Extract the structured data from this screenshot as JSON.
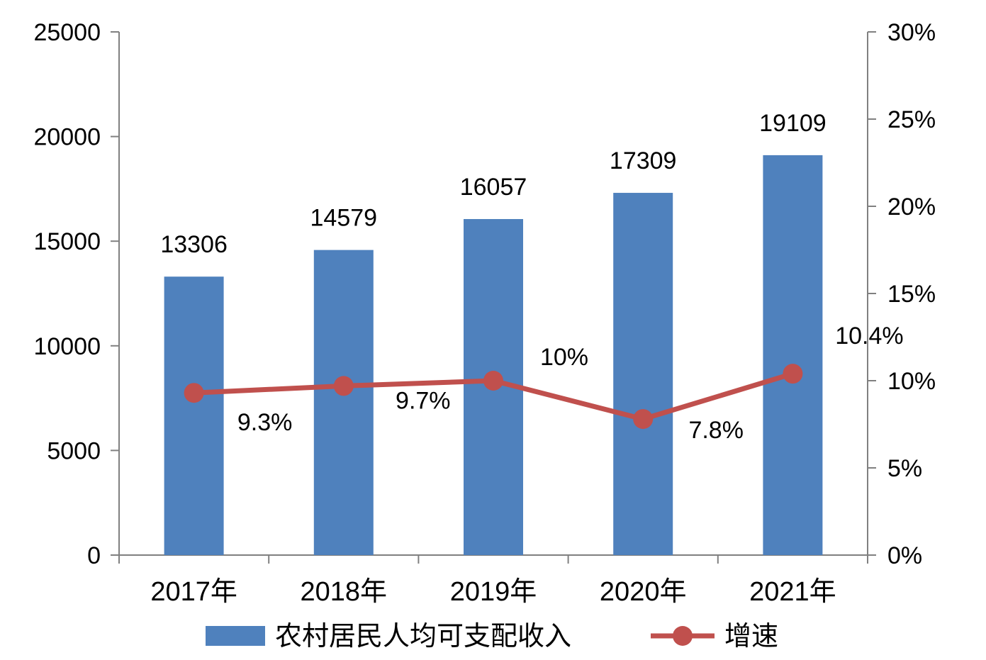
{
  "chart_data": {
    "type": "bar",
    "categories": [
      "2017年",
      "2018年",
      "2019年",
      "2020年",
      "2021年"
    ],
    "series": [
      {
        "name": "农村居民人均可支配收入",
        "type": "bar",
        "axis": "left",
        "color": "#4F81BD",
        "values": [
          13306,
          14579,
          16057,
          17309,
          19109
        ],
        "labels": [
          "13306",
          "14579",
          "16057",
          "17309",
          "19109"
        ]
      },
      {
        "name": "增速",
        "type": "line",
        "axis": "right",
        "color": "#C0504D",
        "values": [
          9.3,
          9.7,
          10.0,
          7.8,
          10.4
        ],
        "labels": [
          "9.3%",
          "9.7%",
          "10%",
          "7.8%",
          "10.4%"
        ]
      }
    ],
    "y_left": {
      "ylim": [
        0,
        25000
      ],
      "ticks": [
        0,
        5000,
        10000,
        15000,
        20000,
        25000
      ],
      "tick_labels": [
        "0",
        "5000",
        "10000",
        "15000",
        "20000",
        "25000"
      ]
    },
    "y_right": {
      "ylim": [
        0,
        30
      ],
      "ticks": [
        0,
        5,
        10,
        15,
        20,
        25,
        30
      ],
      "tick_labels": [
        "0%",
        "5%",
        "10%",
        "15%",
        "20%",
        "25%",
        "30%"
      ]
    },
    "grid": false,
    "legend_position": "bottom"
  }
}
